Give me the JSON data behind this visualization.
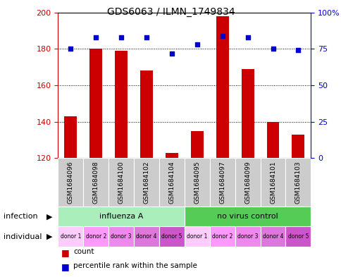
{
  "title": "GDS6063 / ILMN_1749834",
  "samples": [
    "GSM1684096",
    "GSM1684098",
    "GSM1684100",
    "GSM1684102",
    "GSM1684104",
    "GSM1684095",
    "GSM1684097",
    "GSM1684099",
    "GSM1684101",
    "GSM1684103"
  ],
  "counts": [
    143,
    180,
    179,
    168,
    123,
    135,
    198,
    169,
    140,
    133
  ],
  "percentiles": [
    75,
    83,
    83,
    83,
    72,
    78,
    84,
    83,
    75,
    74
  ],
  "donors": [
    "donor 1",
    "donor 2",
    "donor 3",
    "donor 4",
    "donor 5",
    "donor 1",
    "donor 2",
    "donor 3",
    "donor 4",
    "donor 5"
  ],
  "ylim_left": [
    120,
    200
  ],
  "ylim_right": [
    0,
    100
  ],
  "yticks_left": [
    120,
    140,
    160,
    180,
    200
  ],
  "yticks_right": [
    0,
    25,
    50,
    75,
    100
  ],
  "bar_color": "#cc0000",
  "dot_color": "#0000cc",
  "influenza_color": "#aaeebb",
  "novirus_color": "#55cc55",
  "donor_colors_light": [
    "#ffbbff",
    "#ffbbff",
    "#ffbbff",
    "#ffbbff",
    "#ee66ee"
  ],
  "sample_bg_color": "#cccccc",
  "left_axis_color": "#cc0000",
  "right_axis_color": "#0000cc"
}
